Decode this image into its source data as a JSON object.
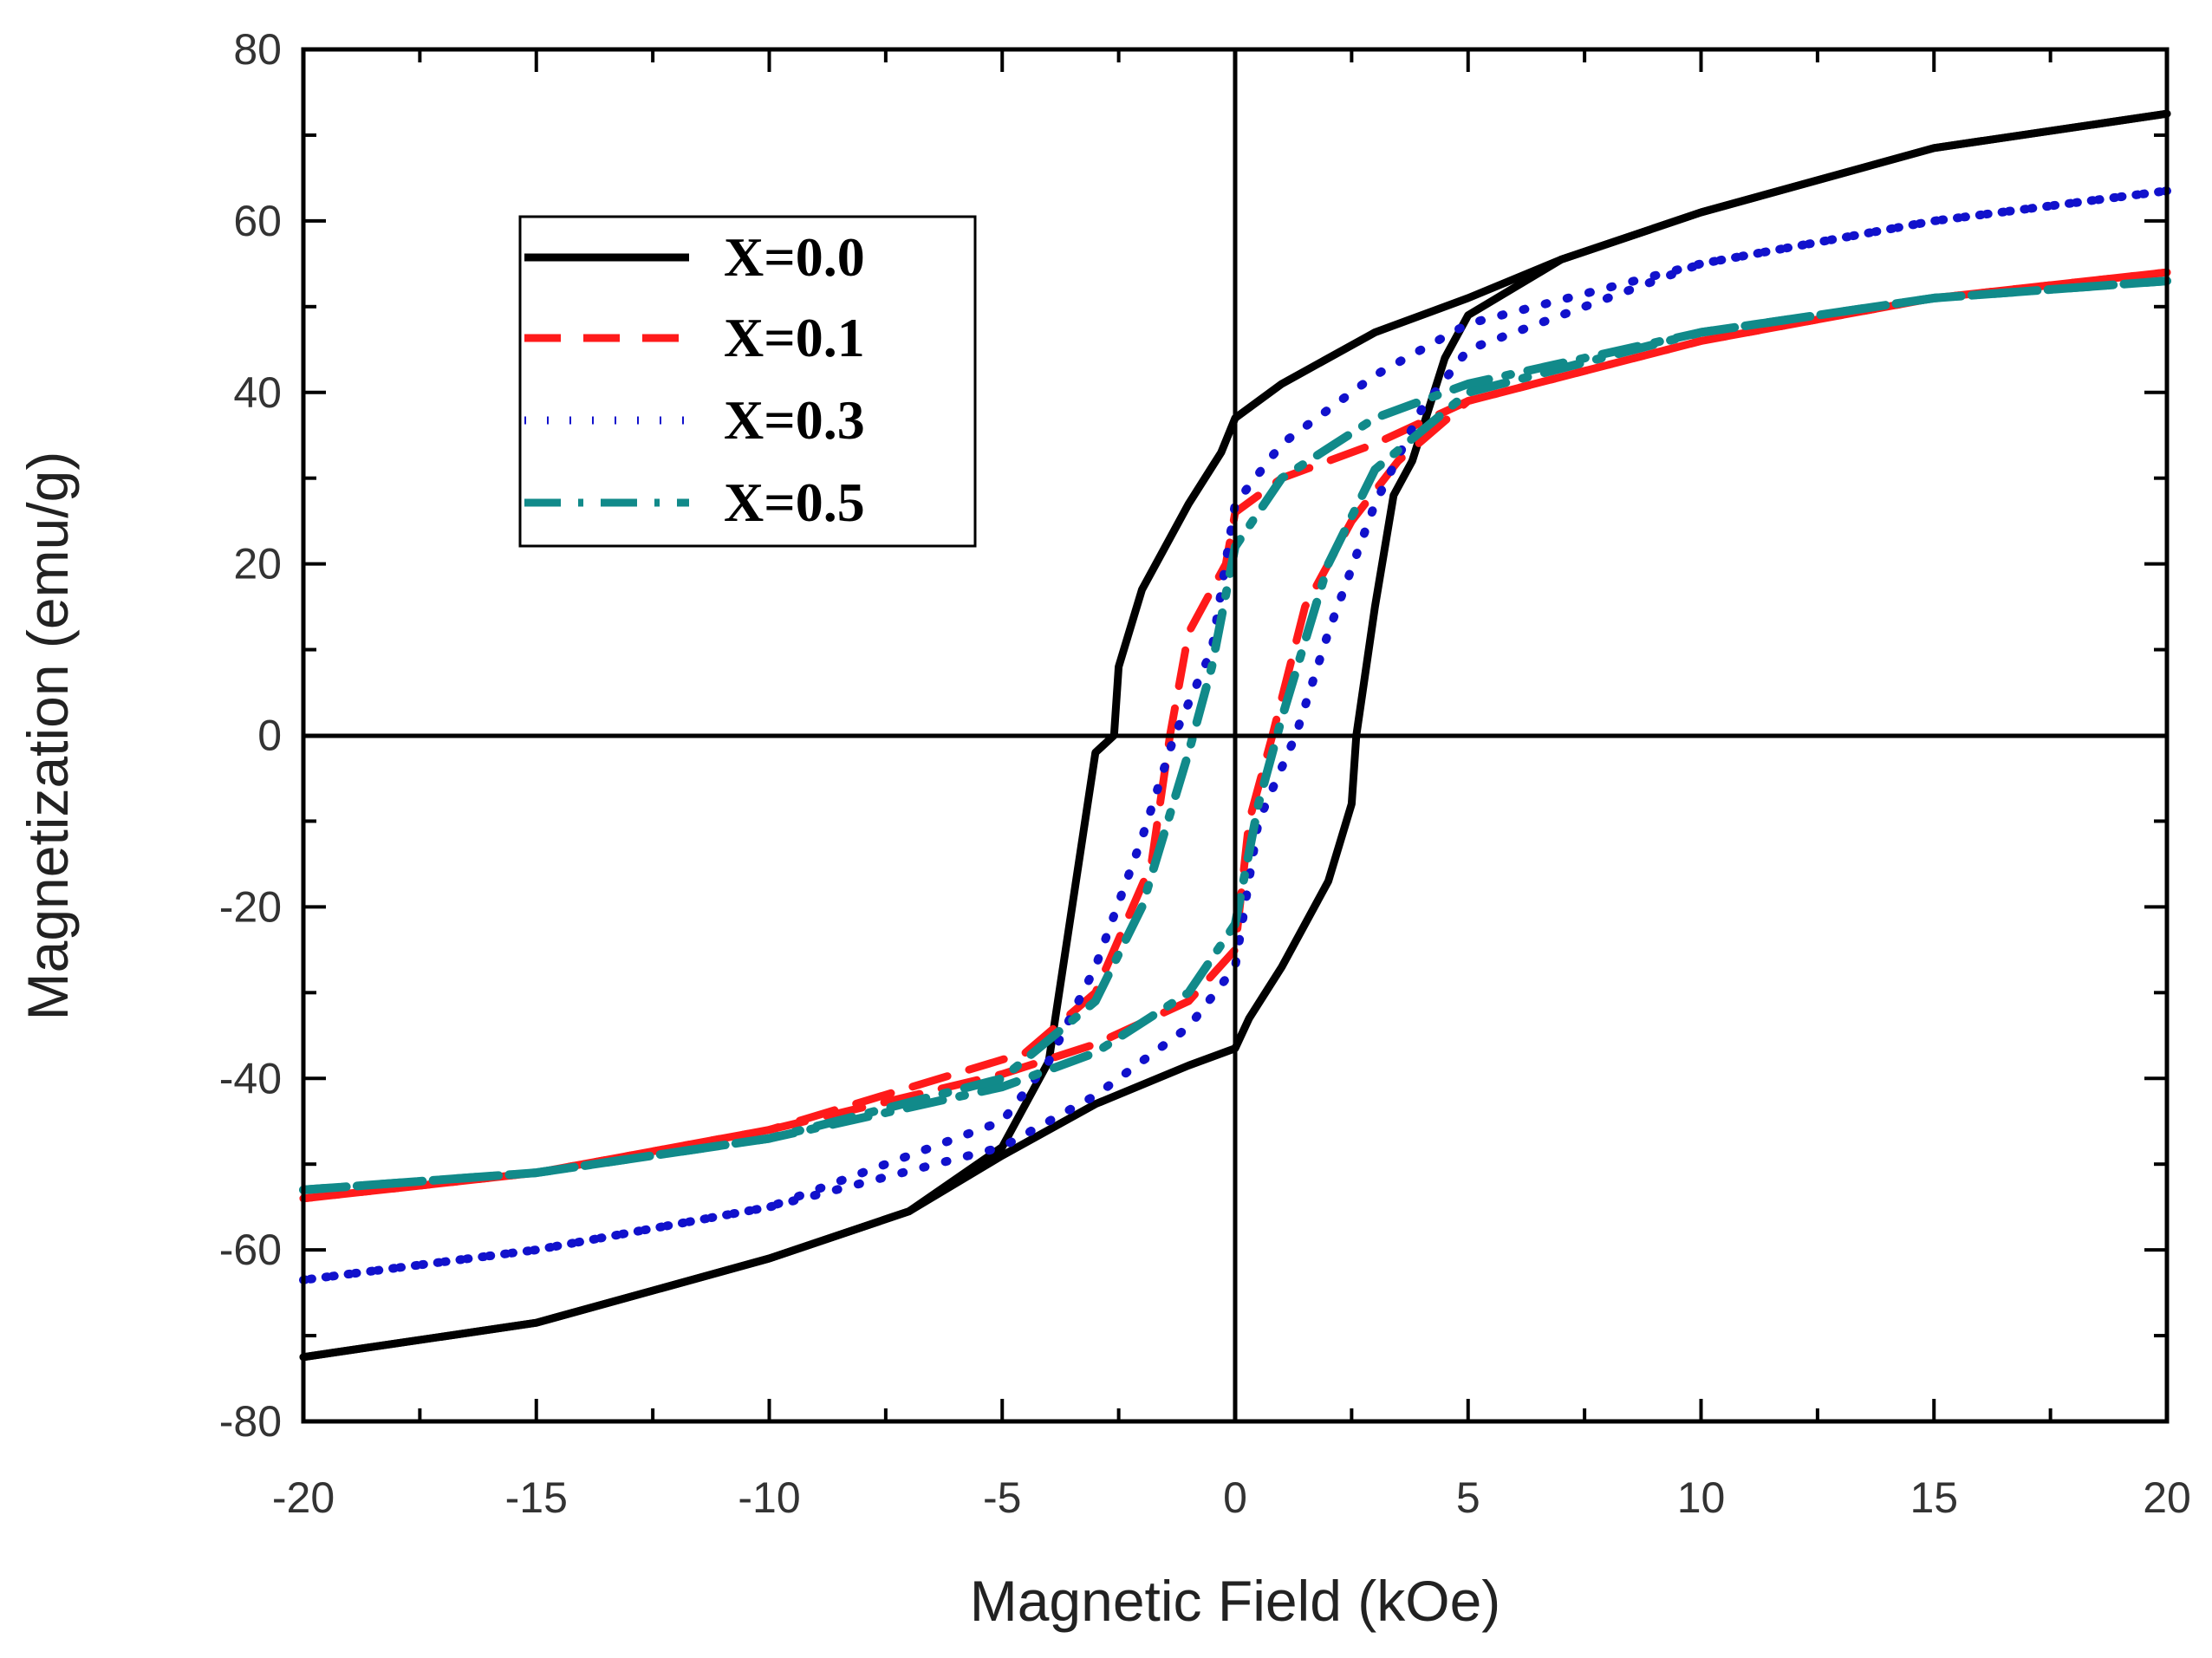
{
  "chart_data": {
    "type": "line",
    "title": "",
    "xlabel": "Magnetic Field (kOe)",
    "ylabel": "Magnetization (emu/g)",
    "xlim": [
      -20,
      20
    ],
    "ylim": [
      -80,
      80
    ],
    "xticks": [
      -20,
      -15,
      -10,
      -5,
      0,
      5,
      10,
      15,
      20
    ],
    "yticks": [
      80,
      60,
      40,
      20,
      0,
      -20,
      -40,
      -60,
      -80
    ],
    "grid": false,
    "zero_lines": true,
    "legend_position": "top-left",
    "series": [
      {
        "name": "X=0.0",
        "color": "#000000",
        "dash": "solid",
        "upper": [
          [
            -20,
            -72.5
          ],
          [
            -15,
            -68.5
          ],
          [
            -10,
            -61
          ],
          [
            -7,
            -55.5
          ],
          [
            -5,
            -49
          ],
          [
            -3,
            -43
          ],
          [
            -1,
            -38.5
          ],
          [
            0,
            -36.5
          ],
          [
            0.3,
            -33
          ],
          [
            1,
            -27
          ],
          [
            2,
            -17
          ],
          [
            2.5,
            -8
          ],
          [
            2.6,
            0
          ],
          [
            3,
            15
          ],
          [
            3.4,
            28
          ],
          [
            3.8,
            32
          ],
          [
            4.5,
            44
          ],
          [
            5,
            49
          ],
          [
            7,
            55.5
          ],
          [
            10,
            61
          ],
          [
            15,
            68.5
          ],
          [
            20,
            72.5
          ]
        ],
        "lower": [
          [
            20,
            72.5
          ],
          [
            15,
            68.5
          ],
          [
            10,
            61
          ],
          [
            7,
            55.5
          ],
          [
            5,
            51
          ],
          [
            3,
            47
          ],
          [
            1,
            41
          ],
          [
            0,
            37
          ],
          [
            -0.3,
            33
          ],
          [
            -1,
            27
          ],
          [
            -2,
            17
          ],
          [
            -2.5,
            8
          ],
          [
            -2.6,
            0
          ],
          [
            -3,
            -2
          ],
          [
            -3.5,
            -20
          ],
          [
            -4,
            -38
          ],
          [
            -5,
            -48
          ],
          [
            -7,
            -55.5
          ],
          [
            -10,
            -61
          ],
          [
            -15,
            -68.5
          ],
          [
            -20,
            -72.5
          ]
        ]
      },
      {
        "name": "X=0.1",
        "color": "#ff1a1a",
        "dash": "dashed",
        "upper": [
          [
            -20,
            -54
          ],
          [
            -15,
            -51
          ],
          [
            -10,
            -46
          ],
          [
            -5,
            -39.5
          ],
          [
            -3,
            -36
          ],
          [
            -1,
            -31
          ],
          [
            0,
            -25
          ],
          [
            0.3,
            -10
          ],
          [
            0.8,
            0
          ],
          [
            1.5,
            15
          ],
          [
            2.5,
            25
          ],
          [
            3.5,
            32
          ],
          [
            5,
            39
          ],
          [
            10,
            46
          ],
          [
            15,
            51
          ],
          [
            20,
            54
          ]
        ],
        "lower": [
          [
            20,
            54
          ],
          [
            15,
            51
          ],
          [
            10,
            46
          ],
          [
            5,
            39
          ],
          [
            3,
            34
          ],
          [
            1,
            30
          ],
          [
            0,
            26
          ],
          [
            -0.2,
            20
          ],
          [
            -1,
            12
          ],
          [
            -1.4,
            0
          ],
          [
            -1.8,
            -15
          ],
          [
            -3,
            -30
          ],
          [
            -4.5,
            -37
          ],
          [
            -10,
            -46
          ],
          [
            -15,
            -51
          ],
          [
            -20,
            -54
          ]
        ]
      },
      {
        "name": "X=0.3",
        "color": "#1111cc",
        "dash": "dotted",
        "upper": [
          [
            -20,
            -63.5
          ],
          [
            -15,
            -60
          ],
          [
            -10,
            -55
          ],
          [
            -5,
            -48
          ],
          [
            -3,
            -42
          ],
          [
            -1,
            -34
          ],
          [
            0,
            -27
          ],
          [
            0.5,
            -10
          ],
          [
            1.3,
            0
          ],
          [
            2,
            12
          ],
          [
            3,
            27
          ],
          [
            4,
            38
          ],
          [
            5,
            45
          ],
          [
            10,
            55
          ],
          [
            15,
            60
          ],
          [
            20,
            63.5
          ]
        ],
        "lower": [
          [
            20,
            63.5
          ],
          [
            15,
            60
          ],
          [
            10,
            55
          ],
          [
            5,
            48
          ],
          [
            3,
            42
          ],
          [
            1,
            34
          ],
          [
            0,
            27
          ],
          [
            -0.5,
            10
          ],
          [
            -1.3,
            0
          ],
          [
            -2,
            -12
          ],
          [
            -3,
            -27
          ],
          [
            -4,
            -38
          ],
          [
            -5,
            -45
          ],
          [
            -10,
            -55
          ],
          [
            -15,
            -60
          ],
          [
            -20,
            -63.5
          ]
        ]
      },
      {
        "name": "X=0.5",
        "color": "#118a8a",
        "dash": "dash-dot",
        "upper": [
          [
            -20,
            -53
          ],
          [
            -15,
            -51
          ],
          [
            -10,
            -47
          ],
          [
            -5,
            -41
          ],
          [
            -3,
            -37
          ],
          [
            -1,
            -30
          ],
          [
            0,
            -22
          ],
          [
            0.5,
            -8
          ],
          [
            1,
            2
          ],
          [
            2,
            20
          ],
          [
            3,
            31
          ],
          [
            5,
            40
          ],
          [
            10,
            47
          ],
          [
            15,
            51
          ],
          [
            20,
            53
          ]
        ],
        "lower": [
          [
            20,
            53
          ],
          [
            15,
            51
          ],
          [
            10,
            47
          ],
          [
            5,
            41
          ],
          [
            3,
            37
          ],
          [
            1,
            30
          ],
          [
            0,
            22
          ],
          [
            -0.5,
            8
          ],
          [
            -1,
            -2
          ],
          [
            -2,
            -20
          ],
          [
            -3,
            -31
          ],
          [
            -5,
            -40
          ],
          [
            -10,
            -47
          ],
          [
            -15,
            -51
          ],
          [
            -20,
            -53
          ]
        ]
      }
    ]
  }
}
